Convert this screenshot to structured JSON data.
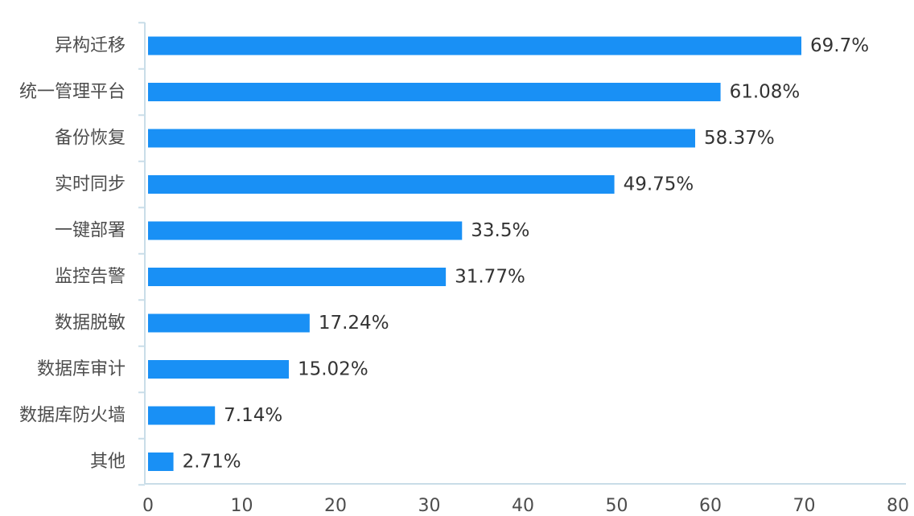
{
  "chart_data": {
    "type": "bar",
    "orientation": "horizontal",
    "categories": [
      "异构迁移",
      "统一管理平台",
      "备份恢复",
      "实时同步",
      "一键部署",
      "监控告警",
      "数据脱敏",
      "数据库审计",
      "数据库防火墙",
      "其他"
    ],
    "values": [
      69.7,
      61.08,
      58.37,
      49.75,
      33.5,
      31.77,
      17.24,
      15.02,
      7.14,
      2.71
    ],
    "value_labels": [
      "69.7%",
      "61.08%",
      "58.37%",
      "49.75%",
      "33.5%",
      "31.77%",
      "17.24%",
      "15.02%",
      "7.14%",
      "2.71%"
    ],
    "xlim": [
      0,
      80
    ],
    "x_ticks": [
      0,
      10,
      20,
      30,
      40,
      50,
      60,
      70,
      80
    ],
    "x_tick_labels": [
      "0",
      "10",
      "20",
      "30",
      "40",
      "50",
      "60",
      "70",
      "80"
    ],
    "title": "",
    "xlabel": "",
    "ylabel": "",
    "grid": false,
    "legend": "none",
    "colors": {
      "bar": "#1990f5",
      "axis": "#c9dde8",
      "text": "#4d4d4d"
    }
  }
}
